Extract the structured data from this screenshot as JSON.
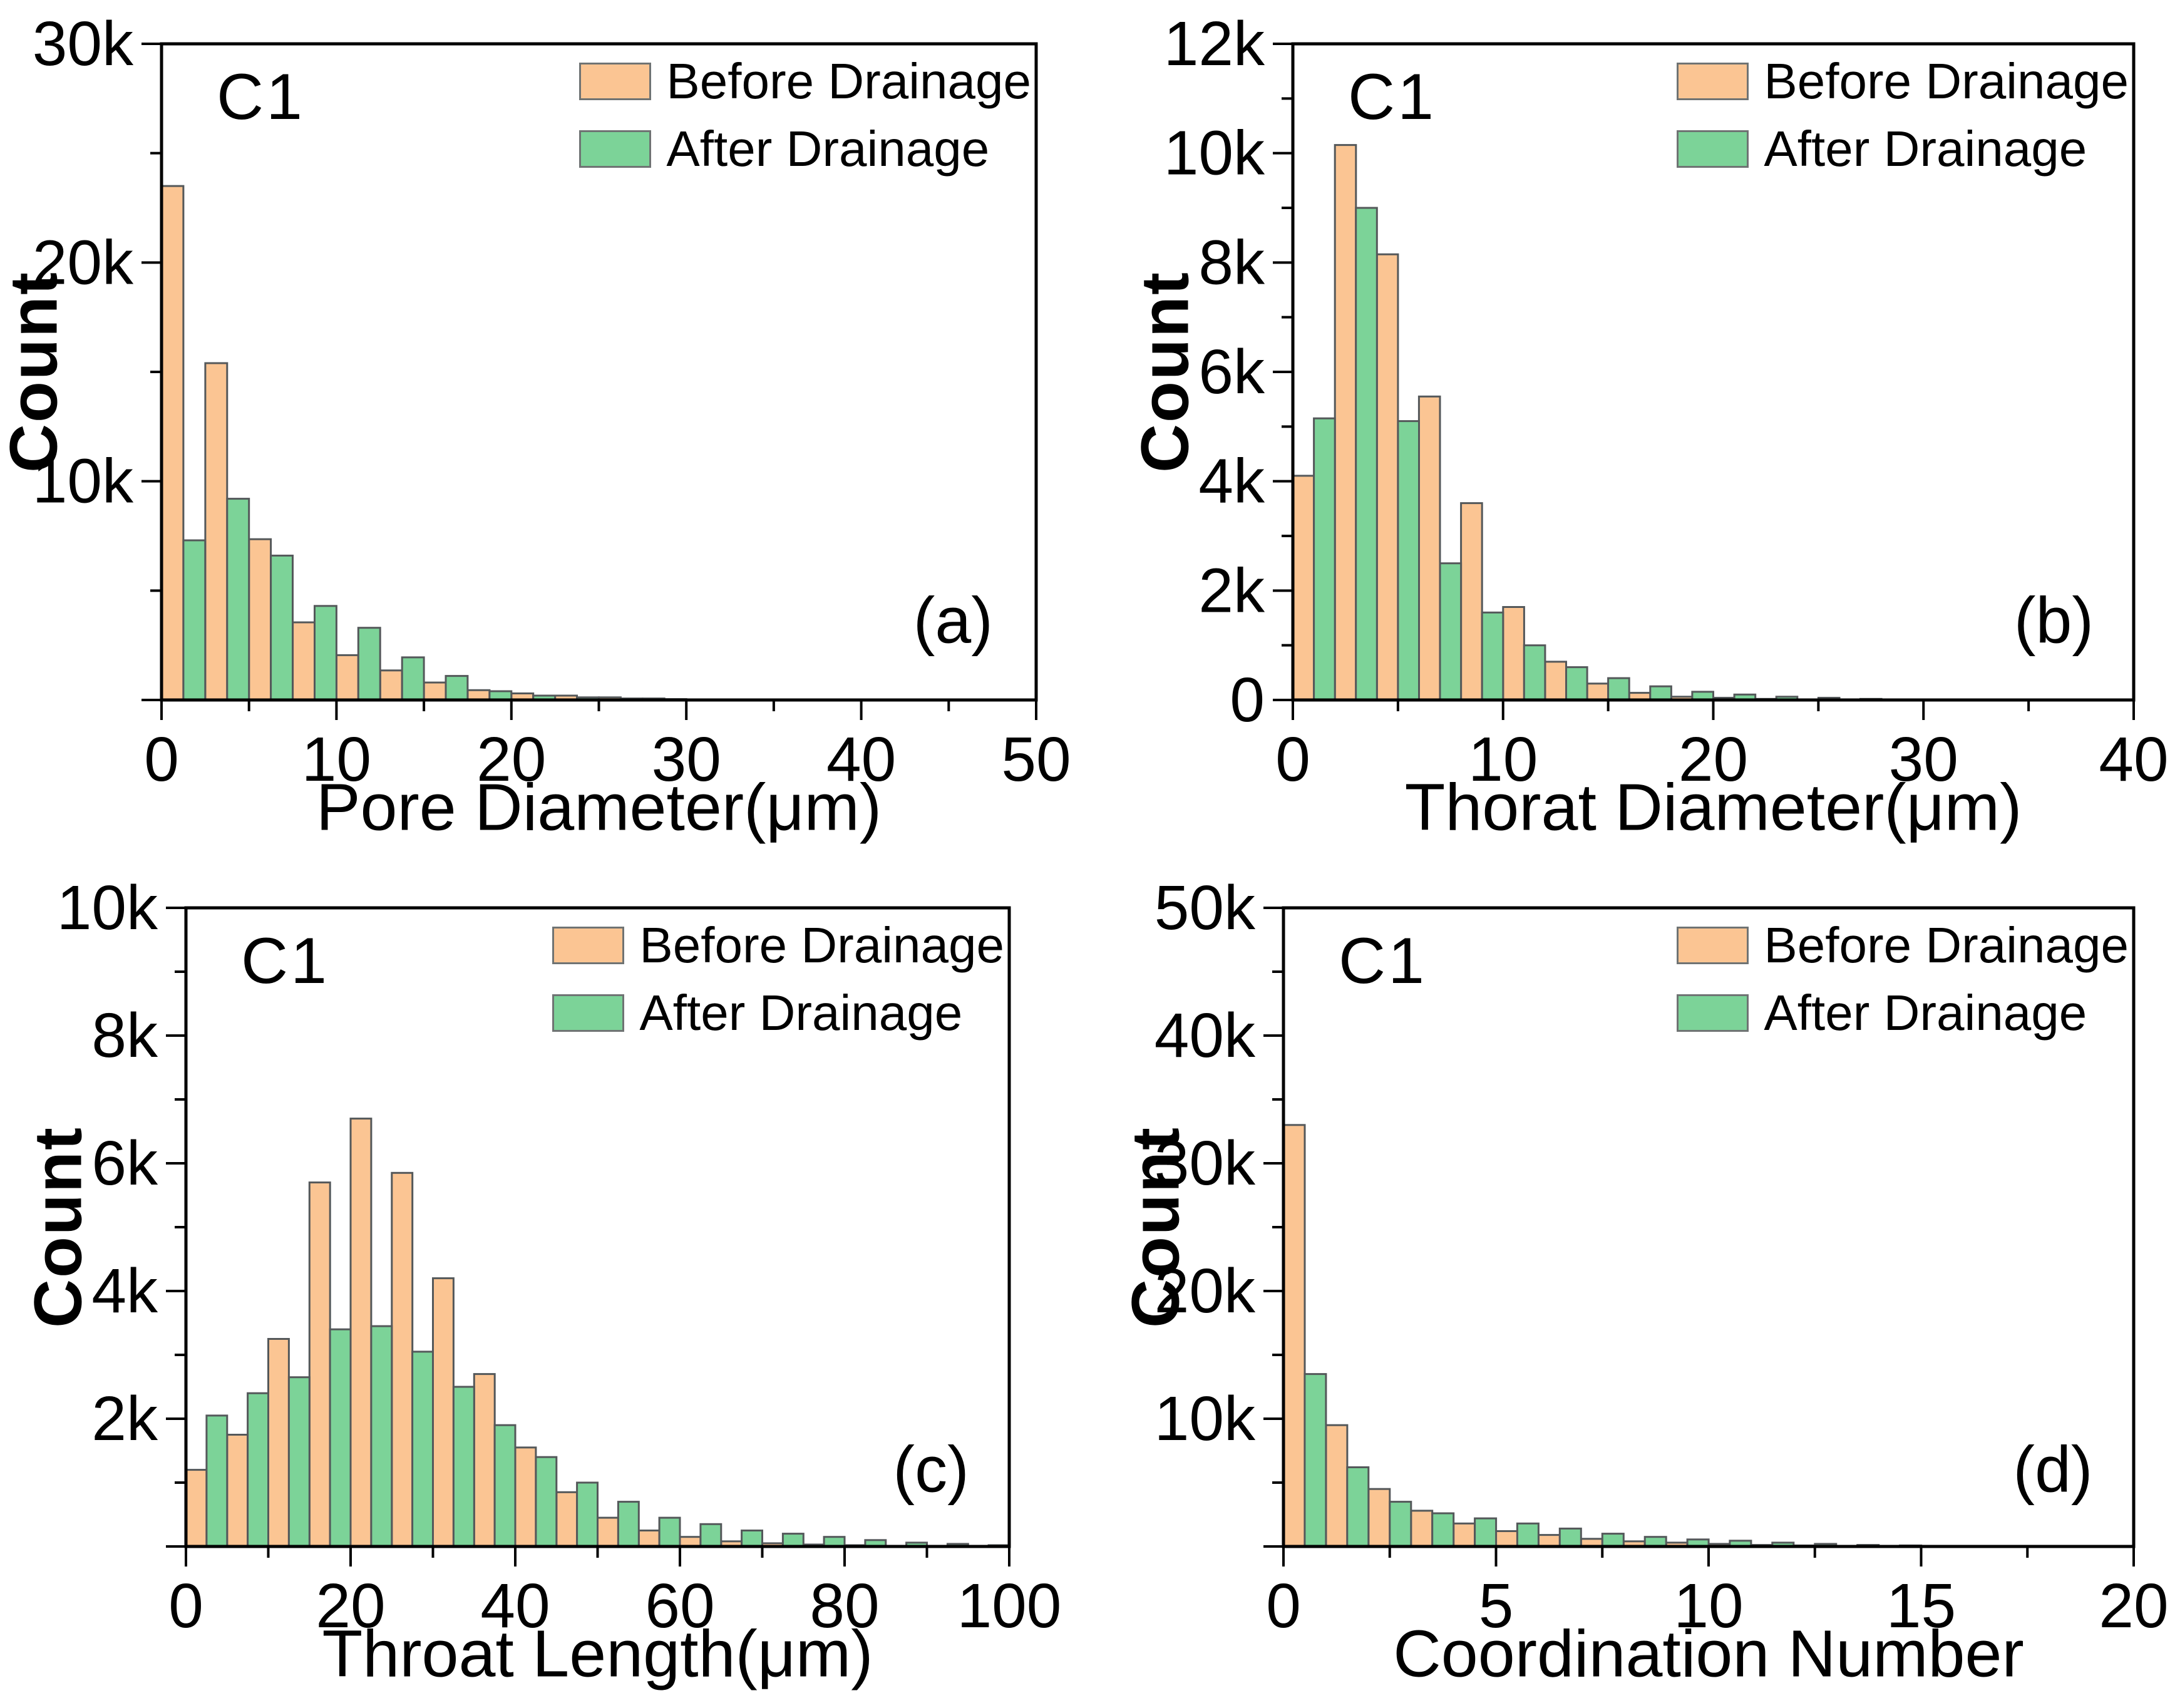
{
  "legend": {
    "before_label": "Before Drainage",
    "after_label": "After Drainage"
  },
  "colors": {
    "before_fill": "#FBC593",
    "after_fill": "#7CD398",
    "bar_outline": "#54585A",
    "axis_color": "#000000"
  },
  "chart_data": [
    {
      "type": "bar",
      "panel_label": "(a)",
      "sample_label": "C1",
      "xlabel": "Pore Diameter(μm)",
      "ylabel": "Count",
      "xlim": [
        0,
        50
      ],
      "ylim": [
        0,
        30000
      ],
      "x_major_ticks": [
        0,
        10,
        20,
        30,
        40,
        50
      ],
      "x_tick_labels": [
        "0",
        "10",
        "20",
        "30",
        "40",
        "50"
      ],
      "x_minor_step": 5,
      "y_major_ticks": [
        0,
        10000,
        20000,
        30000
      ],
      "y_tick_labels": [
        "",
        "10k",
        "20k",
        "30k"
      ],
      "y_minor_step": 5000,
      "grid": false,
      "legend_position": "top-right",
      "bin_start": 0,
      "bin_width": 2.5,
      "series": [
        {
          "name": "Before Drainage",
          "values": [
            23500,
            15400,
            7350,
            3550,
            2050,
            1350,
            800,
            450,
            300,
            200,
            120,
            70
          ]
        },
        {
          "name": "After Drainage",
          "values": [
            7300,
            9200,
            6600,
            4300,
            3300,
            1950,
            1100,
            400,
            200,
            120,
            70,
            40
          ]
        }
      ]
    },
    {
      "type": "bar",
      "panel_label": "(b)",
      "sample_label": "C1",
      "xlabel": "Thorat Diameter(μm)",
      "ylabel": "Count",
      "xlim": [
        0,
        40
      ],
      "ylim": [
        0,
        12000
      ],
      "x_major_ticks": [
        0,
        10,
        20,
        30,
        40
      ],
      "x_tick_labels": [
        "0",
        "10",
        "20",
        "30",
        "40"
      ],
      "x_minor_step": 5,
      "y_major_ticks": [
        0,
        2000,
        4000,
        6000,
        8000,
        10000,
        12000
      ],
      "y_tick_labels": [
        "0",
        "2k",
        "4k",
        "6k",
        "8k",
        "10k",
        "12k"
      ],
      "y_minor_step": 1000,
      "grid": false,
      "legend_position": "top-right",
      "bin_start": 0,
      "bin_width": 2,
      "series": [
        {
          "name": "Before Drainage",
          "values": [
            4100,
            10150,
            8150,
            5550,
            3600,
            1700,
            700,
            300,
            130,
            60,
            40,
            20,
            10,
            5
          ]
        },
        {
          "name": "After Drainage",
          "values": [
            5150,
            9000,
            5100,
            2500,
            1600,
            1000,
            600,
            400,
            250,
            150,
            100,
            60,
            40,
            20
          ]
        }
      ]
    },
    {
      "type": "bar",
      "panel_label": "(c)",
      "sample_label": "C1",
      "xlabel": "Throat Length(μm)",
      "ylabel": "Count",
      "xlim": [
        0,
        100
      ],
      "ylim": [
        0,
        10000
      ],
      "x_major_ticks": [
        0,
        20,
        40,
        60,
        80,
        100
      ],
      "x_tick_labels": [
        "0",
        "20",
        "40",
        "60",
        "80",
        "100"
      ],
      "x_minor_step": 10,
      "y_major_ticks": [
        0,
        2000,
        4000,
        6000,
        8000,
        10000
      ],
      "y_tick_labels": [
        "",
        "2k",
        "4k",
        "6k",
        "8k",
        "10k"
      ],
      "y_minor_step": 1000,
      "grid": false,
      "legend_position": "top-right",
      "bin_start": 0,
      "bin_width": 5,
      "series": [
        {
          "name": "Before Drainage",
          "values": [
            1200,
            1750,
            3250,
            5700,
            6700,
            5850,
            4200,
            2700,
            1550,
            850,
            450,
            250,
            150,
            80,
            50,
            30,
            20,
            10,
            5,
            3
          ]
        },
        {
          "name": "After Drainage",
          "values": [
            2050,
            2400,
            2650,
            3400,
            3450,
            3050,
            2500,
            1900,
            1400,
            1000,
            700,
            450,
            350,
            250,
            200,
            150,
            100,
            60,
            40,
            20
          ]
        }
      ]
    },
    {
      "type": "bar",
      "panel_label": "(d)",
      "sample_label": "C1",
      "xlabel": "Coordination Number",
      "ylabel": "Count",
      "xlim": [
        0,
        20
      ],
      "ylim": [
        0,
        50000
      ],
      "x_major_ticks": [
        0,
        5,
        10,
        15,
        20
      ],
      "x_tick_labels": [
        "0",
        "5",
        "10",
        "15",
        "20"
      ],
      "x_minor_step": 2.5,
      "y_major_ticks": [
        0,
        10000,
        20000,
        30000,
        40000,
        50000
      ],
      "y_tick_labels": [
        "",
        "10k",
        "20k",
        "30k",
        "40k",
        "50k"
      ],
      "y_minor_step": 5000,
      "grid": false,
      "legend_position": "top-right",
      "bin_start": 0,
      "bin_width": 1,
      "series": [
        {
          "name": "Before Drainage",
          "values": [
            33000,
            9500,
            4500,
            2800,
            1800,
            1200,
            900,
            600,
            400,
            300,
            200,
            120,
            80,
            50,
            30,
            20
          ]
        },
        {
          "name": "After Drainage",
          "values": [
            13500,
            6200,
            3500,
            2600,
            2200,
            1800,
            1400,
            1000,
            750,
            550,
            450,
            300,
            200,
            120,
            80,
            50
          ]
        }
      ]
    }
  ]
}
